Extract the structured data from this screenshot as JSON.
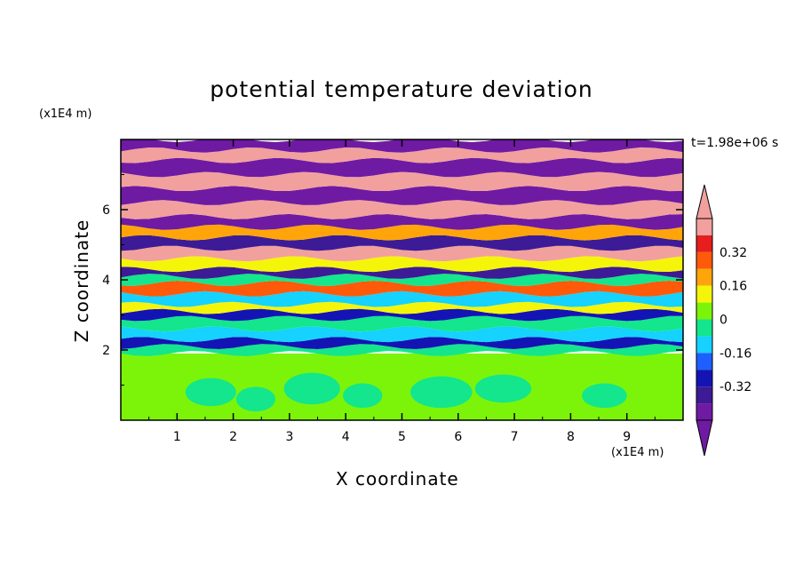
{
  "chart_data": {
    "type": "heatmap",
    "title": "potential temperature deviation",
    "xlabel": "X coordinate",
    "ylabel": "Z coordinate",
    "x_unit": "(x1E4 m)",
    "z_unit": "(x1E4 m)",
    "time_label": "t=1.98e+06 s",
    "xlim": [
      0,
      10
    ],
    "zlim": [
      0,
      8
    ],
    "x_ticks": [
      "1",
      "2",
      "3",
      "4",
      "5",
      "6",
      "7",
      "8",
      "9"
    ],
    "z_ticks": [
      "2",
      "4",
      "6"
    ],
    "colorbar": {
      "levels": [
        -0.48,
        -0.4,
        -0.32,
        -0.24,
        -0.16,
        -0.08,
        0,
        0.08,
        0.16,
        0.24,
        0.32,
        0.4,
        0.48
      ],
      "labels": [
        "0.32",
        "0.16",
        "0",
        "-0.16",
        "-0.32"
      ],
      "colors": [
        "#6f1aa3",
        "#3d1a96",
        "#1414b4",
        "#1e60ff",
        "#15d2ff",
        "#13e68c",
        "#7cf40a",
        "#f5f50a",
        "#ffa50a",
        "#ff5a0a",
        "#e61e1e",
        "#f2a09e"
      ],
      "extend_low_color": "#6f1aa3",
      "extend_high_color": "#f2a09e"
    },
    "bands": [
      {
        "zmin": 0.0,
        "zmax": 1.9,
        "color": "#7cf40a"
      },
      {
        "zmin": 1.9,
        "zmax": 2.1,
        "color": "#13e68c"
      },
      {
        "zmin": 2.1,
        "zmax": 2.3,
        "color": "#1414b4"
      },
      {
        "zmin": 2.3,
        "zmax": 2.6,
        "color": "#15d2ff"
      },
      {
        "zmin": 2.6,
        "zmax": 2.9,
        "color": "#13e68c"
      },
      {
        "zmin": 2.9,
        "zmax": 3.1,
        "color": "#1414b4"
      },
      {
        "zmin": 3.1,
        "zmax": 3.3,
        "color": "#f5f50a"
      },
      {
        "zmin": 3.3,
        "zmax": 3.6,
        "color": "#15d2ff"
      },
      {
        "zmin": 3.6,
        "zmax": 3.9,
        "color": "#ff5a0a"
      },
      {
        "zmin": 3.9,
        "zmax": 4.1,
        "color": "#13e68c"
      },
      {
        "zmin": 4.1,
        "zmax": 4.3,
        "color": "#3d1a96"
      },
      {
        "zmin": 4.3,
        "zmax": 4.6,
        "color": "#f5f50a"
      },
      {
        "zmin": 4.6,
        "zmax": 4.9,
        "color": "#f2a09e"
      },
      {
        "zmin": 4.9,
        "zmax": 5.2,
        "color": "#3d1a96"
      },
      {
        "zmin": 5.2,
        "zmax": 5.5,
        "color": "#ffa50a"
      },
      {
        "zmin": 5.5,
        "zmax": 5.8,
        "color": "#6f1aa3"
      },
      {
        "zmin": 5.8,
        "zmax": 6.2,
        "color": "#f2a09e"
      },
      {
        "zmin": 6.2,
        "zmax": 6.6,
        "color": "#6f1aa3"
      },
      {
        "zmin": 6.6,
        "zmax": 7.0,
        "color": "#f2a09e"
      },
      {
        "zmin": 7.0,
        "zmax": 7.4,
        "color": "#6f1aa3"
      },
      {
        "zmin": 7.4,
        "zmax": 7.7,
        "color": "#f2a09e"
      },
      {
        "zmin": 7.7,
        "zmax": 8.0,
        "color": "#6f1aa3"
      }
    ],
    "lower_eddies": [
      {
        "x": 1.6,
        "z": 0.8,
        "rx": 0.45,
        "rz": 0.4,
        "color": "#13e68c"
      },
      {
        "x": 2.4,
        "z": 0.6,
        "rx": 0.35,
        "rz": 0.35,
        "color": "#13e68c"
      },
      {
        "x": 3.4,
        "z": 0.9,
        "rx": 0.5,
        "rz": 0.45,
        "color": "#13e68c"
      },
      {
        "x": 4.3,
        "z": 0.7,
        "rx": 0.35,
        "rz": 0.35,
        "color": "#13e68c"
      },
      {
        "x": 5.7,
        "z": 0.8,
        "rx": 0.55,
        "rz": 0.45,
        "color": "#13e68c"
      },
      {
        "x": 6.8,
        "z": 0.9,
        "rx": 0.5,
        "rz": 0.4,
        "color": "#13e68c"
      },
      {
        "x": 8.6,
        "z": 0.7,
        "rx": 0.4,
        "rz": 0.35,
        "color": "#13e68c"
      }
    ]
  }
}
